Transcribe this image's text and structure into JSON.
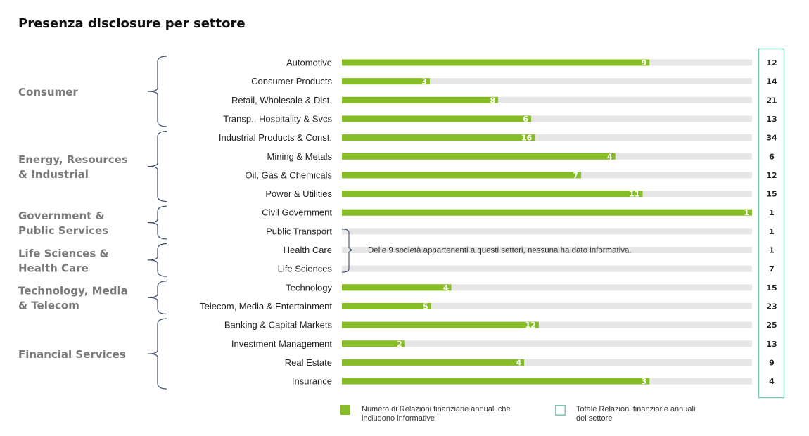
{
  "chart_data": {
    "type": "bar",
    "title": "Presenza disclosure per settore",
    "groups": [
      {
        "label": [
          "Consumer"
        ],
        "categories": [
          "Automotive",
          "Consumer Products",
          "Retail, Wholesale & Dist.",
          "Transp., Hospitality & Svcs"
        ]
      },
      {
        "label": [
          "Energy, Resources",
          "& Industrial"
        ],
        "categories": [
          "Industrial Products & Const.",
          "Mining & Metals",
          "Oil, Gas & Chemicals",
          "Power & Utilities"
        ]
      },
      {
        "label": [
          "Government &",
          "Public Services"
        ],
        "categories": [
          "Civil Government",
          "Public Transport"
        ]
      },
      {
        "label": [
          "Life Sciences &",
          "Health Care"
        ],
        "categories": [
          "Health Care",
          "Life Sciences"
        ]
      },
      {
        "label": [
          "Technology, Media",
          "& Telecom"
        ],
        "categories": [
          "Technology",
          "Telecom, Media & Entertainment"
        ]
      },
      {
        "label": [
          "Financial Services"
        ],
        "categories": [
          "Banking & Capital Markets",
          "Investment Management",
          "Real Estate",
          "Insurance"
        ]
      }
    ],
    "categories": [
      "Automotive",
      "Consumer Products",
      "Retail, Wholesale & Dist.",
      "Transp., Hospitality & Svcs",
      "Industrial Products & Const.",
      "Mining & Metals",
      "Oil, Gas & Chemicals",
      "Power & Utilities",
      "Civil Government",
      "Public Transport",
      "Health Care",
      "Life Sciences",
      "Technology",
      "Telecom, Media & Entertainment",
      "Banking & Capital Markets",
      "Investment Management",
      "Real Estate",
      "Insurance"
    ],
    "series": [
      {
        "name": "Numero di Relazioni finanziarie annuali che includono informative",
        "values": [
          9,
          3,
          8,
          6,
          16,
          4,
          7,
          11,
          1,
          null,
          null,
          null,
          4,
          5,
          12,
          2,
          4,
          3
        ]
      },
      {
        "name": "Totale Relazioni finanziarie annuali del settore",
        "values": [
          12,
          14,
          21,
          13,
          34,
          6,
          12,
          15,
          1,
          1,
          1,
          7,
          15,
          23,
          25,
          13,
          9,
          4
        ]
      }
    ],
    "note": "Delle 9 società appartenenti a questi settori, nessuna ha dato informativa.",
    "note_categories": [
      "Public Transport",
      "Health Care",
      "Life Sciences"
    ],
    "colors": {
      "bar": "#86bc25",
      "track": "#e6e6e6",
      "total_box": "#76c7b5",
      "bracket": "#3c4a6b",
      "group_text": "#7a7a7a"
    },
    "legend": {
      "position": "bottom",
      "items": [
        {
          "marker": "filled",
          "color": "#86bc25",
          "lines": [
            "Numero di Relazioni finanziarie annuali che",
            "includono informative"
          ]
        },
        {
          "marker": "outline",
          "color": "#76c7b5",
          "lines": [
            "Totale Relazioni finanziarie annuali",
            "del settore"
          ]
        }
      ]
    }
  }
}
